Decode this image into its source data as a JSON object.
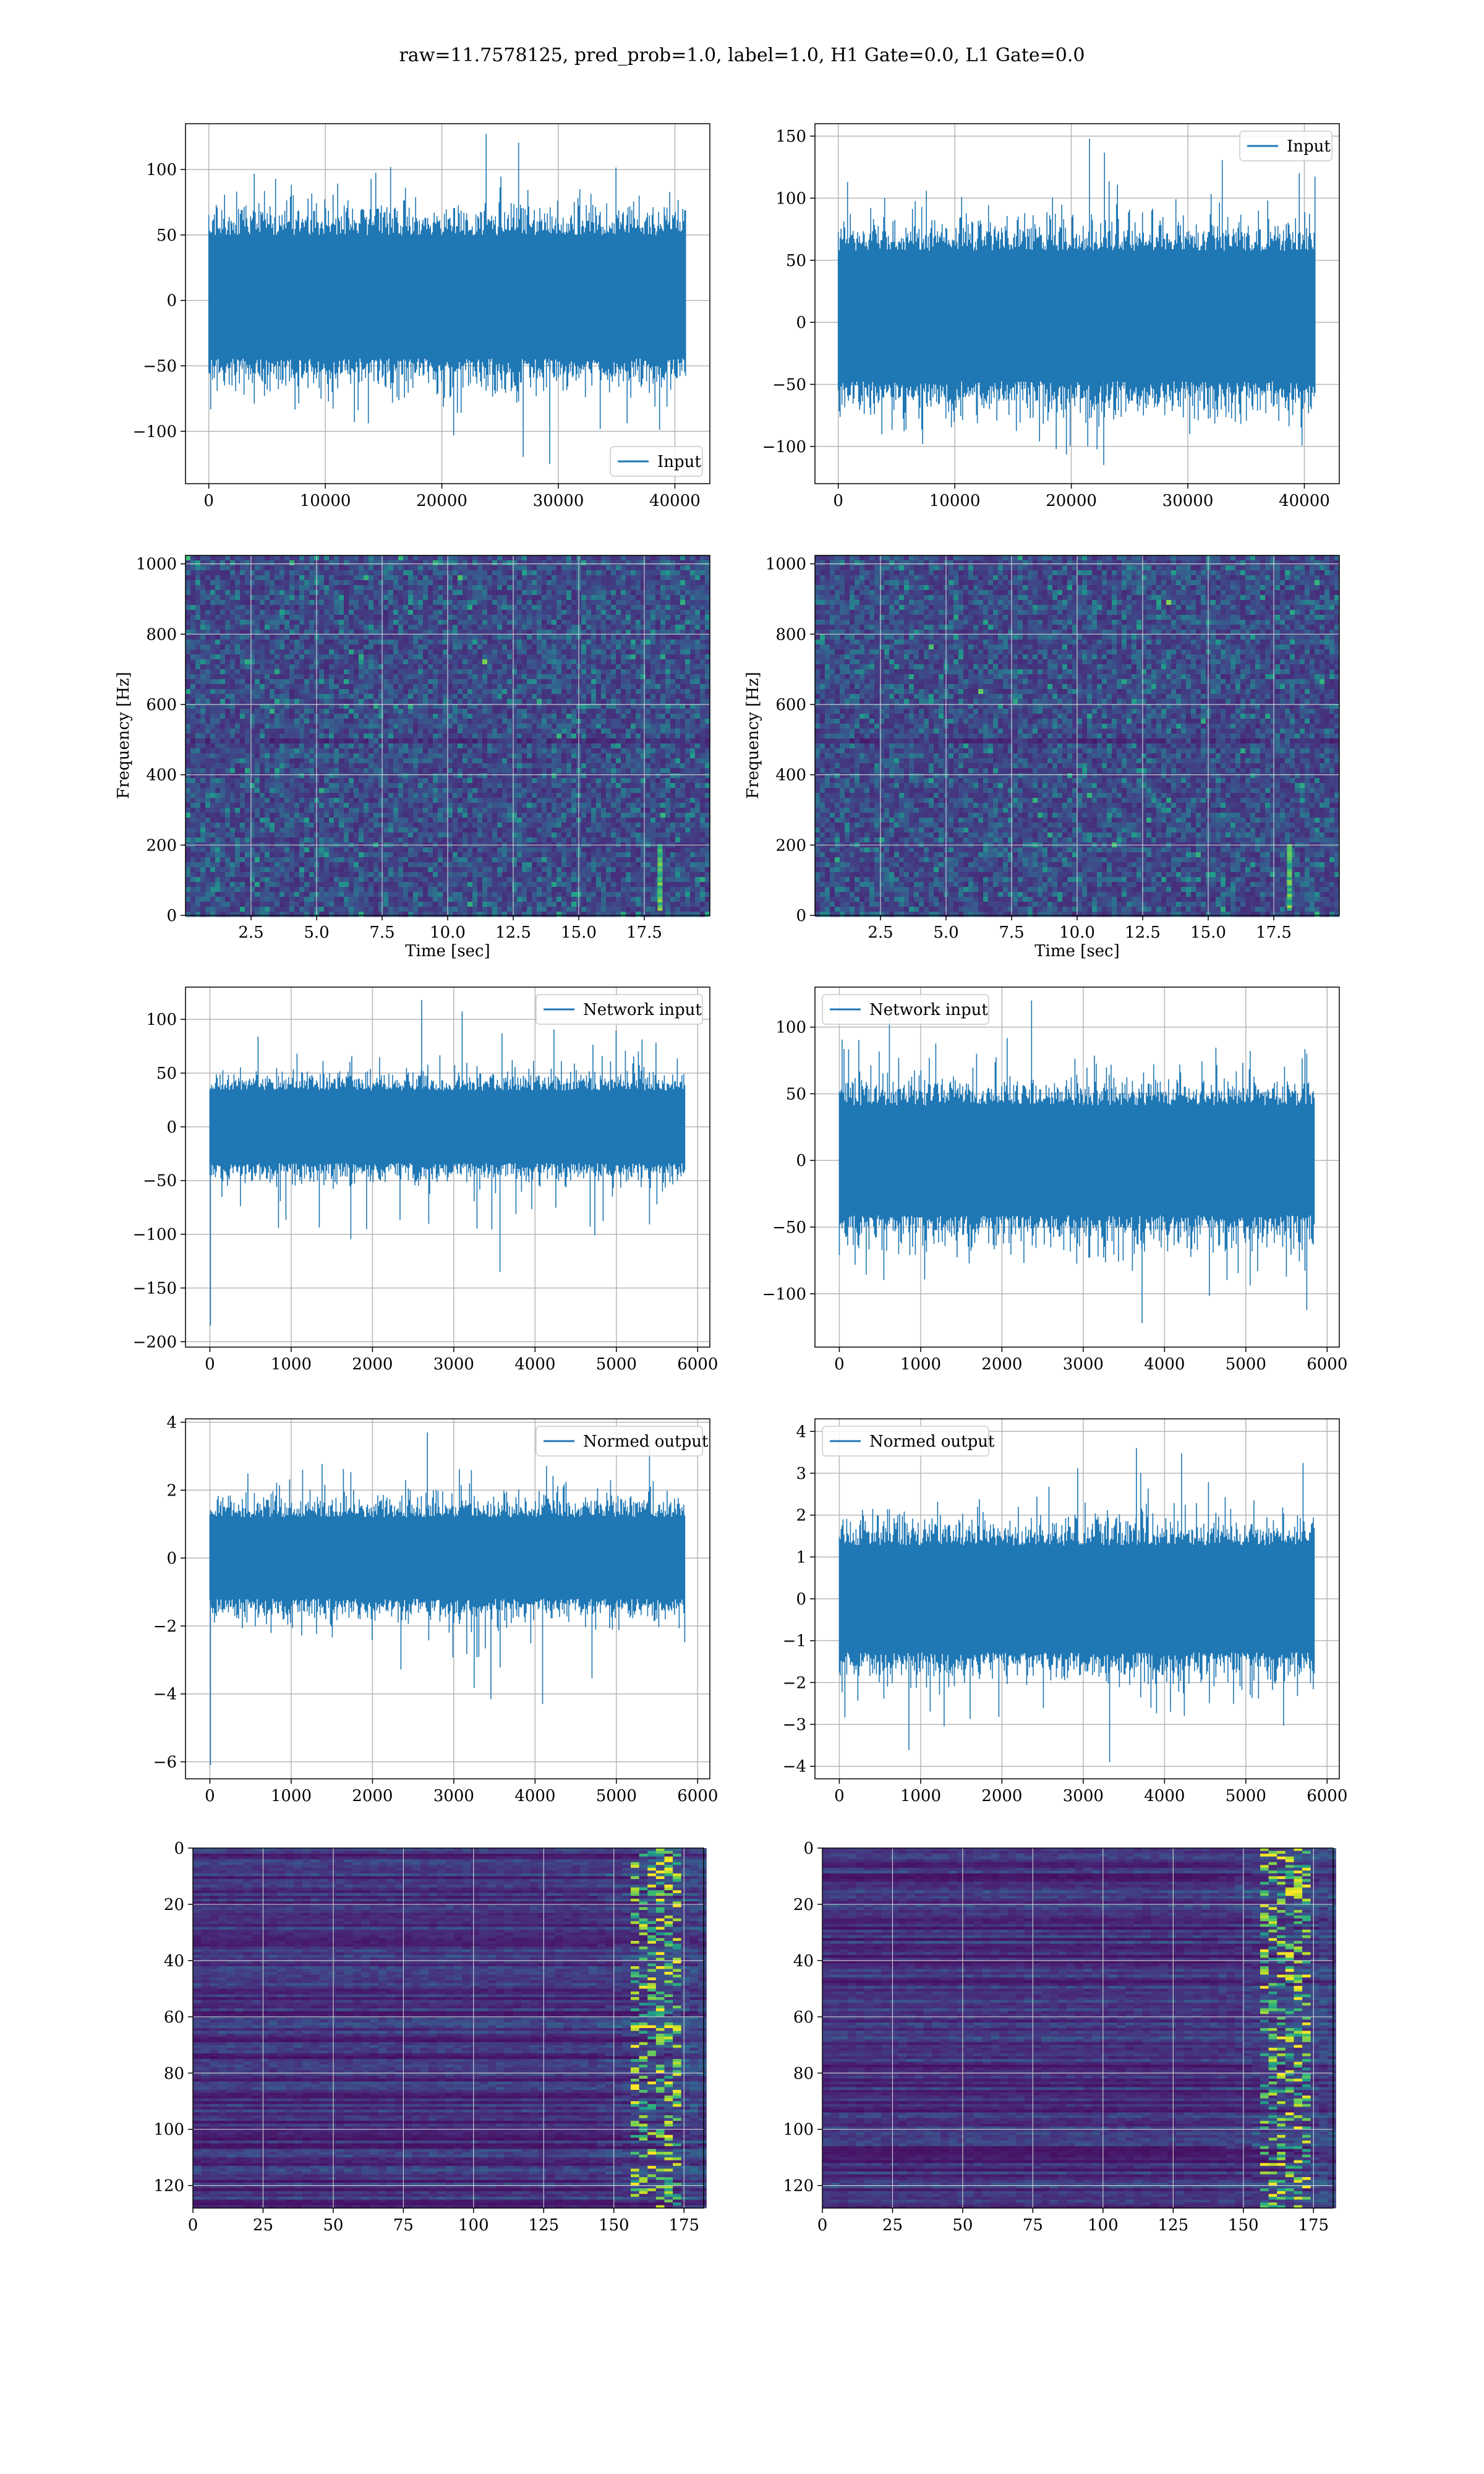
{
  "figure": {
    "title": "raw=11.7578125, pred_prob=1.0, label=1.0, H1 Gate=0.0, L1 Gate=0.0",
    "colors": {
      "line": "#1f77b4",
      "grid": "#b0b0b0",
      "viridis_dark": "#440154"
    }
  },
  "chart_data": [
    {
      "id": "h1_input",
      "type": "line",
      "legend": "Input",
      "legend_loc": "lower-right",
      "x_range": [
        0,
        40960
      ],
      "xlim": [
        -2000,
        43000
      ],
      "ylim": [
        -140,
        135
      ],
      "xticks": [
        0,
        10000,
        20000,
        30000,
        40000
      ],
      "yticks": [
        -100,
        -50,
        0,
        50,
        100
      ],
      "signal": {
        "n": 40960,
        "band": [
          -60,
          65
        ],
        "peak_max": 127,
        "peak_min": -125,
        "first_spike": null
      },
      "grid": true
    },
    {
      "id": "l1_input",
      "type": "line",
      "legend": "Input",
      "legend_loc": "upper-right",
      "x_range": [
        0,
        40960
      ],
      "xlim": [
        -2000,
        43000
      ],
      "ylim": [
        -130,
        160
      ],
      "xticks": [
        0,
        10000,
        20000,
        30000,
        40000
      ],
      "yticks": [
        -100,
        -50,
        0,
        50,
        100,
        150
      ],
      "signal": {
        "n": 40960,
        "band": [
          -65,
          75
        ],
        "peak_max": 148,
        "peak_min": -115,
        "first_spike": null
      },
      "grid": true
    },
    {
      "id": "h1_spectrogram",
      "type": "heatmap",
      "colormap": "viridis",
      "xlabel": "Time [sec]",
      "ylabel": "Frequency [Hz]",
      "xlim": [
        0,
        20
      ],
      "ylim": [
        0,
        1024
      ],
      "xticks": [
        2.5,
        5.0,
        7.5,
        10.0,
        12.5,
        15.0,
        17.5
      ],
      "yticks": [
        0,
        200,
        400,
        600,
        800,
        1000
      ],
      "grid": true
    },
    {
      "id": "l1_spectrogram",
      "type": "heatmap",
      "colormap": "viridis",
      "xlabel": "Time [sec]",
      "ylabel": "Frequency [Hz]",
      "xlim": [
        0,
        20
      ],
      "ylim": [
        0,
        1024
      ],
      "xticks": [
        2.5,
        5.0,
        7.5,
        10.0,
        12.5,
        15.0,
        17.5
      ],
      "yticks": [
        0,
        200,
        400,
        600,
        800,
        1000
      ],
      "grid": true
    },
    {
      "id": "h1_network_input",
      "type": "line",
      "legend": "Network input",
      "legend_loc": "upper-right",
      "x_range": [
        0,
        5850
      ],
      "xlim": [
        -300,
        6150
      ],
      "ylim": [
        -205,
        130
      ],
      "xticks": [
        0,
        1000,
        2000,
        3000,
        4000,
        5000,
        6000
      ],
      "yticks": [
        -200,
        -150,
        -100,
        -50,
        0,
        50,
        100
      ],
      "signal": {
        "n": 5850,
        "band": [
          -45,
          45
        ],
        "peak_max": 118,
        "peak_min": -135,
        "first_spike": -185
      },
      "grid": true
    },
    {
      "id": "l1_network_input",
      "type": "line",
      "legend": "Network input",
      "legend_loc": "upper-left",
      "x_range": [
        0,
        5850
      ],
      "xlim": [
        -300,
        6150
      ],
      "ylim": [
        -140,
        130
      ],
      "xticks": [
        0,
        1000,
        2000,
        3000,
        4000,
        5000,
        6000
      ],
      "yticks": [
        -100,
        -50,
        0,
        50,
        100
      ],
      "signal": {
        "n": 5850,
        "band": [
          -55,
          55
        ],
        "peak_max": 120,
        "peak_min": -122,
        "first_spike": null
      },
      "grid": true
    },
    {
      "id": "h1_normed_output",
      "type": "line",
      "legend": "Normed output",
      "legend_loc": "upper-right",
      "x_range": [
        0,
        5850
      ],
      "xlim": [
        -300,
        6150
      ],
      "ylim": [
        -6.5,
        4.1
      ],
      "xticks": [
        0,
        1000,
        2000,
        3000,
        4000,
        5000,
        6000
      ],
      "yticks": [
        -6,
        -4,
        -2,
        0,
        2,
        4
      ],
      "signal": {
        "n": 5850,
        "band": [
          -1.6,
          1.6
        ],
        "peak_max": 3.7,
        "peak_min": -4.3,
        "first_spike": -6.1
      },
      "grid": true
    },
    {
      "id": "l1_normed_output",
      "type": "line",
      "legend": "Normed output",
      "legend_loc": "upper-left",
      "x_range": [
        0,
        5850
      ],
      "xlim": [
        -300,
        6150
      ],
      "ylim": [
        -4.3,
        4.3
      ],
      "xticks": [
        0,
        1000,
        2000,
        3000,
        4000,
        5000,
        6000
      ],
      "yticks": [
        -4,
        -3,
        -2,
        -1,
        0,
        1,
        2,
        3,
        4
      ],
      "signal": {
        "n": 5850,
        "band": [
          -1.7,
          1.7
        ],
        "peak_max": 3.6,
        "peak_min": -3.9,
        "first_spike": null
      },
      "grid": true
    },
    {
      "id": "h1_features",
      "type": "heatmap",
      "colormap": "viridis",
      "xlim": [
        0,
        182
      ],
      "ylim": [
        128,
        0
      ],
      "xticks": [
        0,
        25,
        50,
        75,
        100,
        125,
        150,
        175
      ],
      "yticks": [
        0,
        20,
        40,
        60,
        80,
        100,
        120
      ],
      "grid": true
    },
    {
      "id": "l1_features",
      "type": "heatmap",
      "colormap": "viridis",
      "xlim": [
        0,
        182
      ],
      "ylim": [
        128,
        0
      ],
      "xticks": [
        0,
        25,
        50,
        75,
        100,
        125,
        150,
        175
      ],
      "yticks": [
        0,
        20,
        40,
        60,
        80,
        100,
        120
      ],
      "grid": true
    }
  ]
}
